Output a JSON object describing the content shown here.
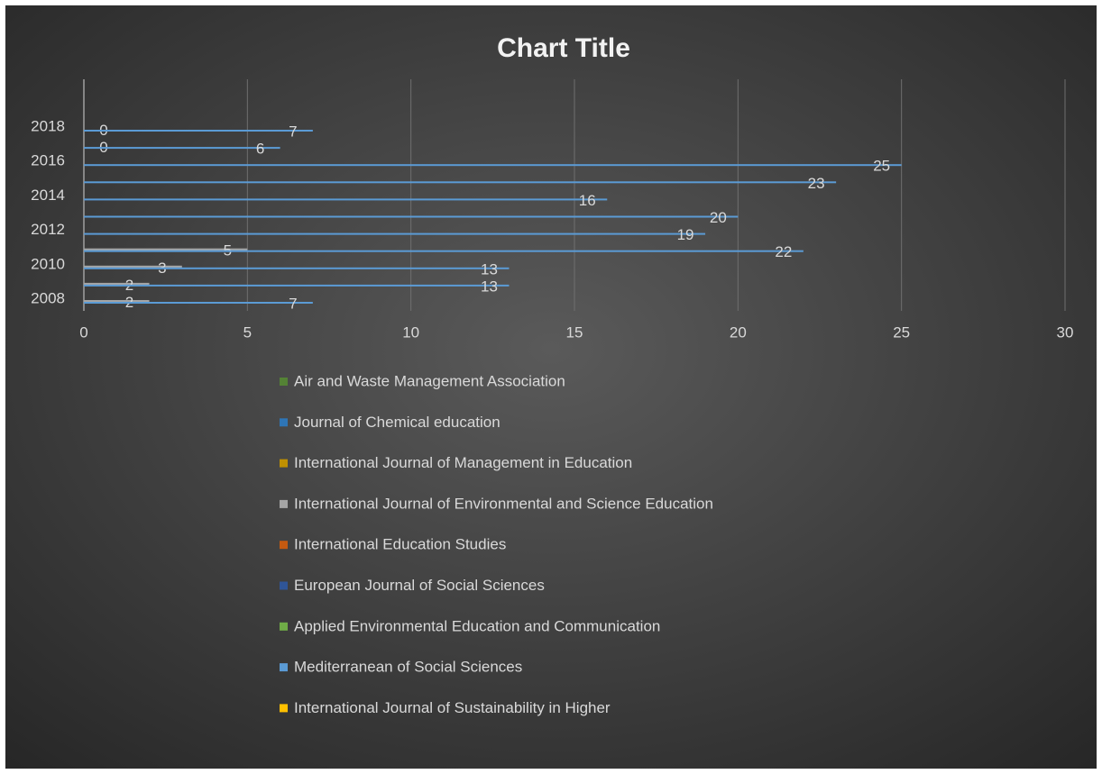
{
  "chart_data": {
    "type": "hbar",
    "title": "Chart Title",
    "categories": [
      "2008",
      null,
      "2010",
      null,
      "2012",
      null,
      "2014",
      null,
      "2016",
      null,
      "2018"
    ],
    "series": [
      {
        "name": "Air and Waste Management Association",
        "color": "#548235",
        "values": [
          null,
          null,
          null,
          null,
          null,
          null,
          null,
          null,
          null,
          null,
          null
        ]
      },
      {
        "name": "Journal of Chemical education",
        "color": "#2e75b6",
        "values": [
          null,
          null,
          null,
          null,
          null,
          null,
          null,
          null,
          null,
          null,
          null
        ]
      },
      {
        "name": "International Journal of Management in Education",
        "color": "#bf9000",
        "values": [
          null,
          null,
          null,
          null,
          null,
          null,
          null,
          null,
          null,
          null,
          null
        ]
      },
      {
        "name": "International Journal of Environmental and Science Education",
        "color": "#a5a5a5",
        "values": [
          2,
          2,
          3,
          5,
          null,
          null,
          null,
          null,
          null,
          0,
          0
        ]
      },
      {
        "name": "International Education Studies",
        "color": "#c55a11",
        "values": [
          null,
          null,
          null,
          null,
          null,
          null,
          null,
          null,
          null,
          null,
          null
        ]
      },
      {
        "name": "European Journal of Social Sciences",
        "color": "#2f5597",
        "values": [
          null,
          null,
          null,
          null,
          null,
          null,
          null,
          null,
          null,
          null,
          null
        ]
      },
      {
        "name": "Applied Environmental Education and Communication",
        "color": "#70ad47",
        "values": [
          null,
          null,
          null,
          null,
          null,
          null,
          null,
          null,
          null,
          null,
          null
        ]
      },
      {
        "name": "Mediterranean of Social Sciences",
        "color": "#5b9bd5",
        "values": [
          7,
          13,
          13,
          22,
          19,
          20,
          16,
          23,
          25,
          6,
          7
        ]
      },
      {
        "name": "International Journal of Sustainability in Higher",
        "color": "#ffc000",
        "values": [
          null,
          null,
          null,
          null,
          null,
          null,
          null,
          null,
          null,
          null,
          null
        ]
      }
    ],
    "xlim": [
      0,
      30
    ],
    "xticks": [
      0,
      5,
      10,
      15,
      20,
      25,
      30
    ],
    "grid": true
  }
}
